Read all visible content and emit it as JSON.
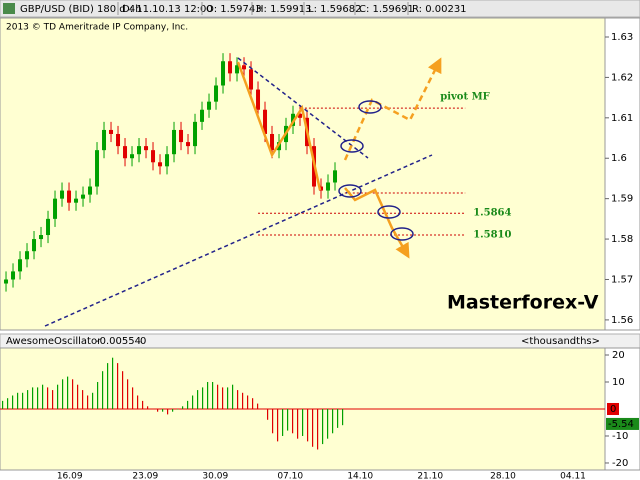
{
  "chart_data": [
    {
      "type": "candlestick",
      "title": "GBP/USD (BID) 180 d 4h",
      "info": [
        "D: 11.10.13 12:00",
        "O: 1.59743",
        "H: 1.59913",
        "L: 1.59682",
        "C: 1.59691",
        "R: 0.00231"
      ],
      "copyright": "2013 © TD Ameritrade IP Company, Inc.",
      "annotation": "Masterforex-V",
      "x": [
        0,
        1,
        2,
        3,
        4,
        5,
        6,
        7,
        8,
        9,
        10,
        11,
        12,
        13,
        14,
        15,
        16,
        17,
        18,
        19,
        20,
        21,
        22,
        23,
        24,
        25,
        26,
        27,
        28,
        29,
        30,
        31,
        32,
        33,
        34,
        35,
        36,
        37,
        38,
        39,
        40,
        41,
        42,
        43,
        44,
        45,
        46,
        47
      ],
      "open": [
        1.569,
        1.57,
        1.572,
        1.575,
        1.577,
        1.58,
        1.581,
        1.585,
        1.59,
        1.592,
        1.589,
        1.59,
        1.591,
        1.593,
        1.602,
        1.607,
        1.606,
        1.603,
        1.6,
        1.601,
        1.603,
        1.602,
        1.599,
        1.598,
        1.601,
        1.607,
        1.604,
        1.603,
        1.609,
        1.612,
        1.614,
        1.618,
        1.624,
        1.621,
        1.623,
        1.622,
        1.617,
        1.612,
        1.606,
        1.602,
        1.604,
        1.608,
        1.611,
        1.61,
        1.603,
        1.593,
        1.592,
        1.594
      ],
      "high": [
        1.572,
        1.574,
        1.577,
        1.579,
        1.582,
        1.583,
        1.587,
        1.592,
        1.594,
        1.594,
        1.592,
        1.593,
        1.595,
        1.604,
        1.609,
        1.609,
        1.608,
        1.605,
        1.603,
        1.605,
        1.605,
        1.604,
        1.601,
        1.603,
        1.609,
        1.609,
        1.606,
        1.611,
        1.614,
        1.616,
        1.62,
        1.626,
        1.626,
        1.625,
        1.625,
        1.624,
        1.619,
        1.614,
        1.608,
        1.606,
        1.61,
        1.613,
        1.613,
        1.612,
        1.605,
        1.595,
        1.596,
        1.599
      ],
      "low": [
        1.567,
        1.568,
        1.57,
        1.573,
        1.575,
        1.578,
        1.579,
        1.583,
        1.588,
        1.587,
        1.587,
        1.588,
        1.589,
        1.591,
        1.6,
        1.604,
        1.601,
        1.598,
        1.598,
        1.599,
        1.6,
        1.597,
        1.596,
        1.596,
        1.599,
        1.602,
        1.601,
        1.601,
        1.607,
        1.61,
        1.612,
        1.616,
        1.619,
        1.619,
        1.62,
        1.615,
        1.61,
        1.604,
        1.6,
        1.6,
        1.602,
        1.606,
        1.608,
        1.601,
        1.591,
        1.59,
        1.59,
        1.592
      ],
      "close": [
        1.57,
        1.572,
        1.575,
        1.577,
        1.58,
        1.581,
        1.585,
        1.59,
        1.592,
        1.589,
        1.59,
        1.591,
        1.593,
        1.602,
        1.607,
        1.606,
        1.603,
        1.6,
        1.601,
        1.603,
        1.602,
        1.599,
        1.598,
        1.601,
        1.607,
        1.604,
        1.603,
        1.609,
        1.612,
        1.614,
        1.618,
        1.624,
        1.621,
        1.623,
        1.622,
        1.617,
        1.612,
        1.606,
        1.602,
        1.604,
        1.608,
        1.611,
        1.61,
        1.603,
        1.593,
        1.592,
        1.594,
        1.597
      ],
      "up_color": "#00a000",
      "down_color": "#e00000",
      "xlim": [
        -0.86,
        85.57
      ],
      "xticks": [
        {
          "value": 9.1,
          "label": "16.09"
        },
        {
          "value": 19.9,
          "label": "23.09"
        },
        {
          "value": 29.9,
          "label": "30.09"
        },
        {
          "value": 40.6,
          "label": "07.10"
        },
        {
          "value": 50.6,
          "label": "14.10"
        },
        {
          "value": 60.6,
          "label": "21.10"
        },
        {
          "value": 71,
          "label": "28.10"
        },
        {
          "value": 81,
          "label": "04.11"
        }
      ],
      "ylim": [
        1.5575,
        1.6347
      ],
      "yticks": [
        1.56,
        1.57,
        1.58,
        1.59,
        1.6,
        1.61,
        1.62,
        1.63
      ],
      "levels": [
        {
          "value": 1.6124,
          "label": "pivot MF",
          "from": 42.7,
          "to": 65.6
        },
        {
          "value": 1.5914,
          "from": 48.4,
          "to": 65.6
        },
        {
          "value": 1.5864,
          "label": "1.5864",
          "from": 36,
          "to": 65.6
        },
        {
          "value": 1.581,
          "label": "1.5810",
          "from": 36,
          "to": 65.6
        }
      ],
      "level_color": "#cc0000"
    },
    {
      "type": "oscillator",
      "name": "AwesomeOscillator",
      "current": -0.00554,
      "param": 0,
      "units": "<thousandths>",
      "values": [
        3,
        4,
        5,
        6,
        6,
        7,
        8,
        8,
        9,
        8,
        7,
        9,
        11,
        12,
        11,
        9,
        7,
        5,
        6,
        10,
        14,
        17,
        19,
        17,
        14,
        11,
        8,
        5,
        3,
        1,
        0,
        -1,
        -1,
        -2,
        -1,
        0,
        1,
        3,
        5,
        7,
        8,
        10,
        10,
        9,
        8,
        8,
        9,
        7,
        6,
        5,
        4,
        2,
        0,
        -4,
        -9,
        -12,
        -10,
        -8,
        -9,
        -11,
        -10,
        -12,
        -14,
        -15,
        -13,
        -11,
        -9,
        -7,
        -6
      ],
      "up_color": "#00a000",
      "down_color": "#e00000",
      "last": -5.54,
      "ylim": [
        -22.6,
        21.85
      ],
      "yticks": [
        20,
        10,
        0,
        -10,
        -20
      ]
    }
  ]
}
